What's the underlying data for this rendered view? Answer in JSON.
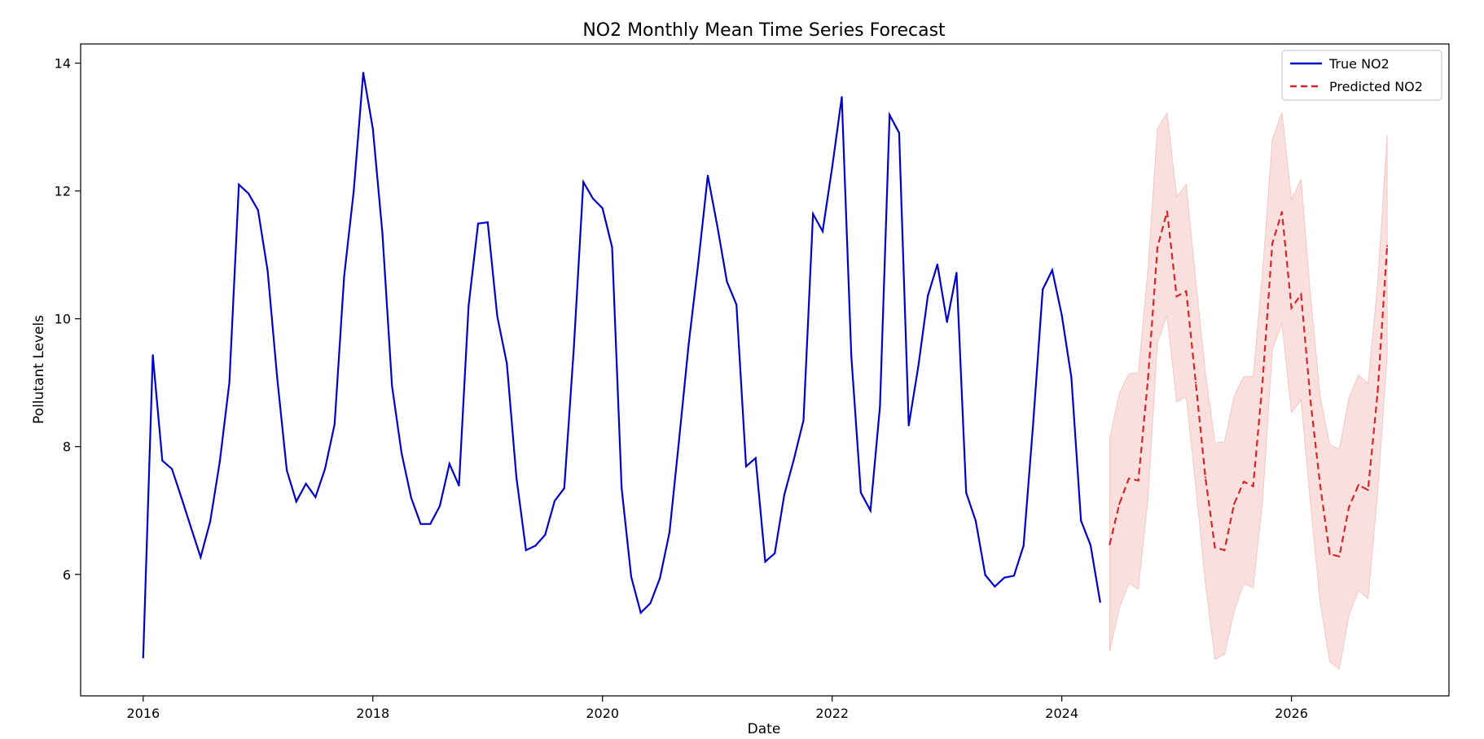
{
  "chart_data": {
    "type": "line",
    "title": "NO2 Monthly Mean Time Series Forecast",
    "xlabel": "Date",
    "ylabel": "Pollutant Levels",
    "x_axis_type": "date",
    "xlim": [
      "2015-06-15",
      "2027-05-15"
    ],
    "ylim": [
      4.1,
      14.3
    ],
    "xticks": [
      "2016",
      "2018",
      "2020",
      "2022",
      "2024",
      "2026"
    ],
    "yticks": [
      "6",
      "8",
      "10",
      "12",
      "14"
    ],
    "grid": false,
    "legend_position": "upper right",
    "series": [
      {
        "name": "True NO2",
        "color": "#0000cc",
        "style": "solid",
        "x": [
          "2016-01",
          "2016-02",
          "2016-03",
          "2016-04",
          "2016-05",
          "2016-06",
          "2016-07",
          "2016-08",
          "2016-09",
          "2016-10",
          "2016-11",
          "2016-12",
          "2017-01",
          "2017-02",
          "2017-03",
          "2017-04",
          "2017-05",
          "2017-06",
          "2017-07",
          "2017-08",
          "2017-09",
          "2017-10",
          "2017-11",
          "2017-12",
          "2018-01",
          "2018-02",
          "2018-03",
          "2018-04",
          "2018-05",
          "2018-06",
          "2018-07",
          "2018-08",
          "2018-09",
          "2018-10",
          "2018-11",
          "2018-12",
          "2019-01",
          "2019-02",
          "2019-03",
          "2019-04",
          "2019-05",
          "2019-06",
          "2019-07",
          "2019-08",
          "2019-09",
          "2019-10",
          "2019-11",
          "2019-12",
          "2020-01",
          "2020-02",
          "2020-03",
          "2020-04",
          "2020-05",
          "2020-06",
          "2020-07",
          "2020-08",
          "2020-09",
          "2020-10",
          "2020-11",
          "2020-12",
          "2021-01",
          "2021-02",
          "2021-03",
          "2021-04",
          "2021-05",
          "2021-06",
          "2021-07",
          "2021-08",
          "2021-09",
          "2021-10",
          "2021-11",
          "2021-12",
          "2022-01",
          "2022-02",
          "2022-03",
          "2022-04",
          "2022-05",
          "2022-06",
          "2022-07",
          "2022-08",
          "2022-09",
          "2022-10",
          "2022-11",
          "2022-12",
          "2023-01",
          "2023-02",
          "2023-03",
          "2023-04",
          "2023-05",
          "2023-06",
          "2023-07",
          "2023-08",
          "2023-09",
          "2023-10",
          "2023-11",
          "2023-12",
          "2024-01",
          "2024-02",
          "2024-03",
          "2024-04",
          "2024-05"
        ],
        "values": [
          4.7,
          9.43,
          7.78,
          7.65,
          7.2,
          6.73,
          6.27,
          6.83,
          7.76,
          9.0,
          12.1,
          11.96,
          11.7,
          10.75,
          9.08,
          7.63,
          7.14,
          7.42,
          7.21,
          7.65,
          8.35,
          10.66,
          12.0,
          13.85,
          12.97,
          11.34,
          8.95,
          7.9,
          7.2,
          6.79,
          6.79,
          7.07,
          7.73,
          7.39,
          10.2,
          11.49,
          11.51,
          10.04,
          9.3,
          7.52,
          6.38,
          6.45,
          6.62,
          7.15,
          7.35,
          9.54,
          12.14,
          11.88,
          11.73,
          11.12,
          7.35,
          5.96,
          5.4,
          5.55,
          5.94,
          6.66,
          8.1,
          9.6,
          10.86,
          12.24,
          11.45,
          10.58,
          10.22,
          7.69,
          7.82,
          6.2,
          6.33,
          7.25,
          7.8,
          8.41,
          11.64,
          11.37,
          12.37,
          13.47,
          9.42,
          7.28,
          7.0,
          8.63,
          13.19,
          12.91,
          8.33,
          9.25,
          10.36,
          10.85,
          9.95,
          10.72,
          7.28,
          6.84,
          5.99,
          5.81,
          5.95,
          5.98,
          6.45,
          8.35,
          10.46,
          10.76,
          10.05,
          9.08,
          6.84,
          6.46,
          5.57
        ]
      },
      {
        "name": "Predicted NO2",
        "color": "#d62728",
        "style": "dashed",
        "x": [
          "2024-06",
          "2024-07",
          "2024-08",
          "2024-09",
          "2024-10",
          "2024-11",
          "2024-12",
          "2025-01",
          "2025-02",
          "2025-03",
          "2025-04",
          "2025-05",
          "2025-06",
          "2025-07",
          "2025-08",
          "2025-09",
          "2025-10",
          "2025-11",
          "2025-12",
          "2026-01",
          "2026-02",
          "2026-03",
          "2026-04",
          "2026-05",
          "2026-06",
          "2026-07",
          "2026-08",
          "2026-09",
          "2026-10",
          "2026-11"
        ],
        "values": [
          6.47,
          7.1,
          7.5,
          7.47,
          9.05,
          11.12,
          11.68,
          10.35,
          10.43,
          9.0,
          7.52,
          6.42,
          6.38,
          7.1,
          7.45,
          7.38,
          9.06,
          11.18,
          11.67,
          10.17,
          10.38,
          8.7,
          7.39,
          6.32,
          6.28,
          7.05,
          7.4,
          7.32,
          8.85,
          11.14
        ],
        "lower": [
          4.8,
          5.47,
          5.86,
          5.77,
          7.18,
          9.63,
          10.05,
          8.7,
          8.78,
          7.38,
          5.87,
          4.67,
          4.75,
          5.42,
          5.86,
          5.79,
          7.19,
          9.52,
          9.93,
          8.53,
          8.73,
          7.09,
          5.56,
          4.63,
          4.52,
          5.36,
          5.75,
          5.62,
          7.28,
          9.42
        ],
        "upper": [
          8.13,
          8.83,
          9.14,
          9.15,
          10.77,
          12.98,
          13.22,
          11.91,
          12.1,
          10.6,
          9.16,
          8.06,
          8.07,
          8.79,
          9.09,
          9.1,
          10.77,
          12.8,
          13.23,
          11.87,
          12.18,
          10.34,
          8.78,
          8.03,
          7.96,
          8.76,
          9.12,
          8.98,
          10.55,
          12.87
        ],
        "band_color": "#f4c7c3"
      }
    ]
  }
}
